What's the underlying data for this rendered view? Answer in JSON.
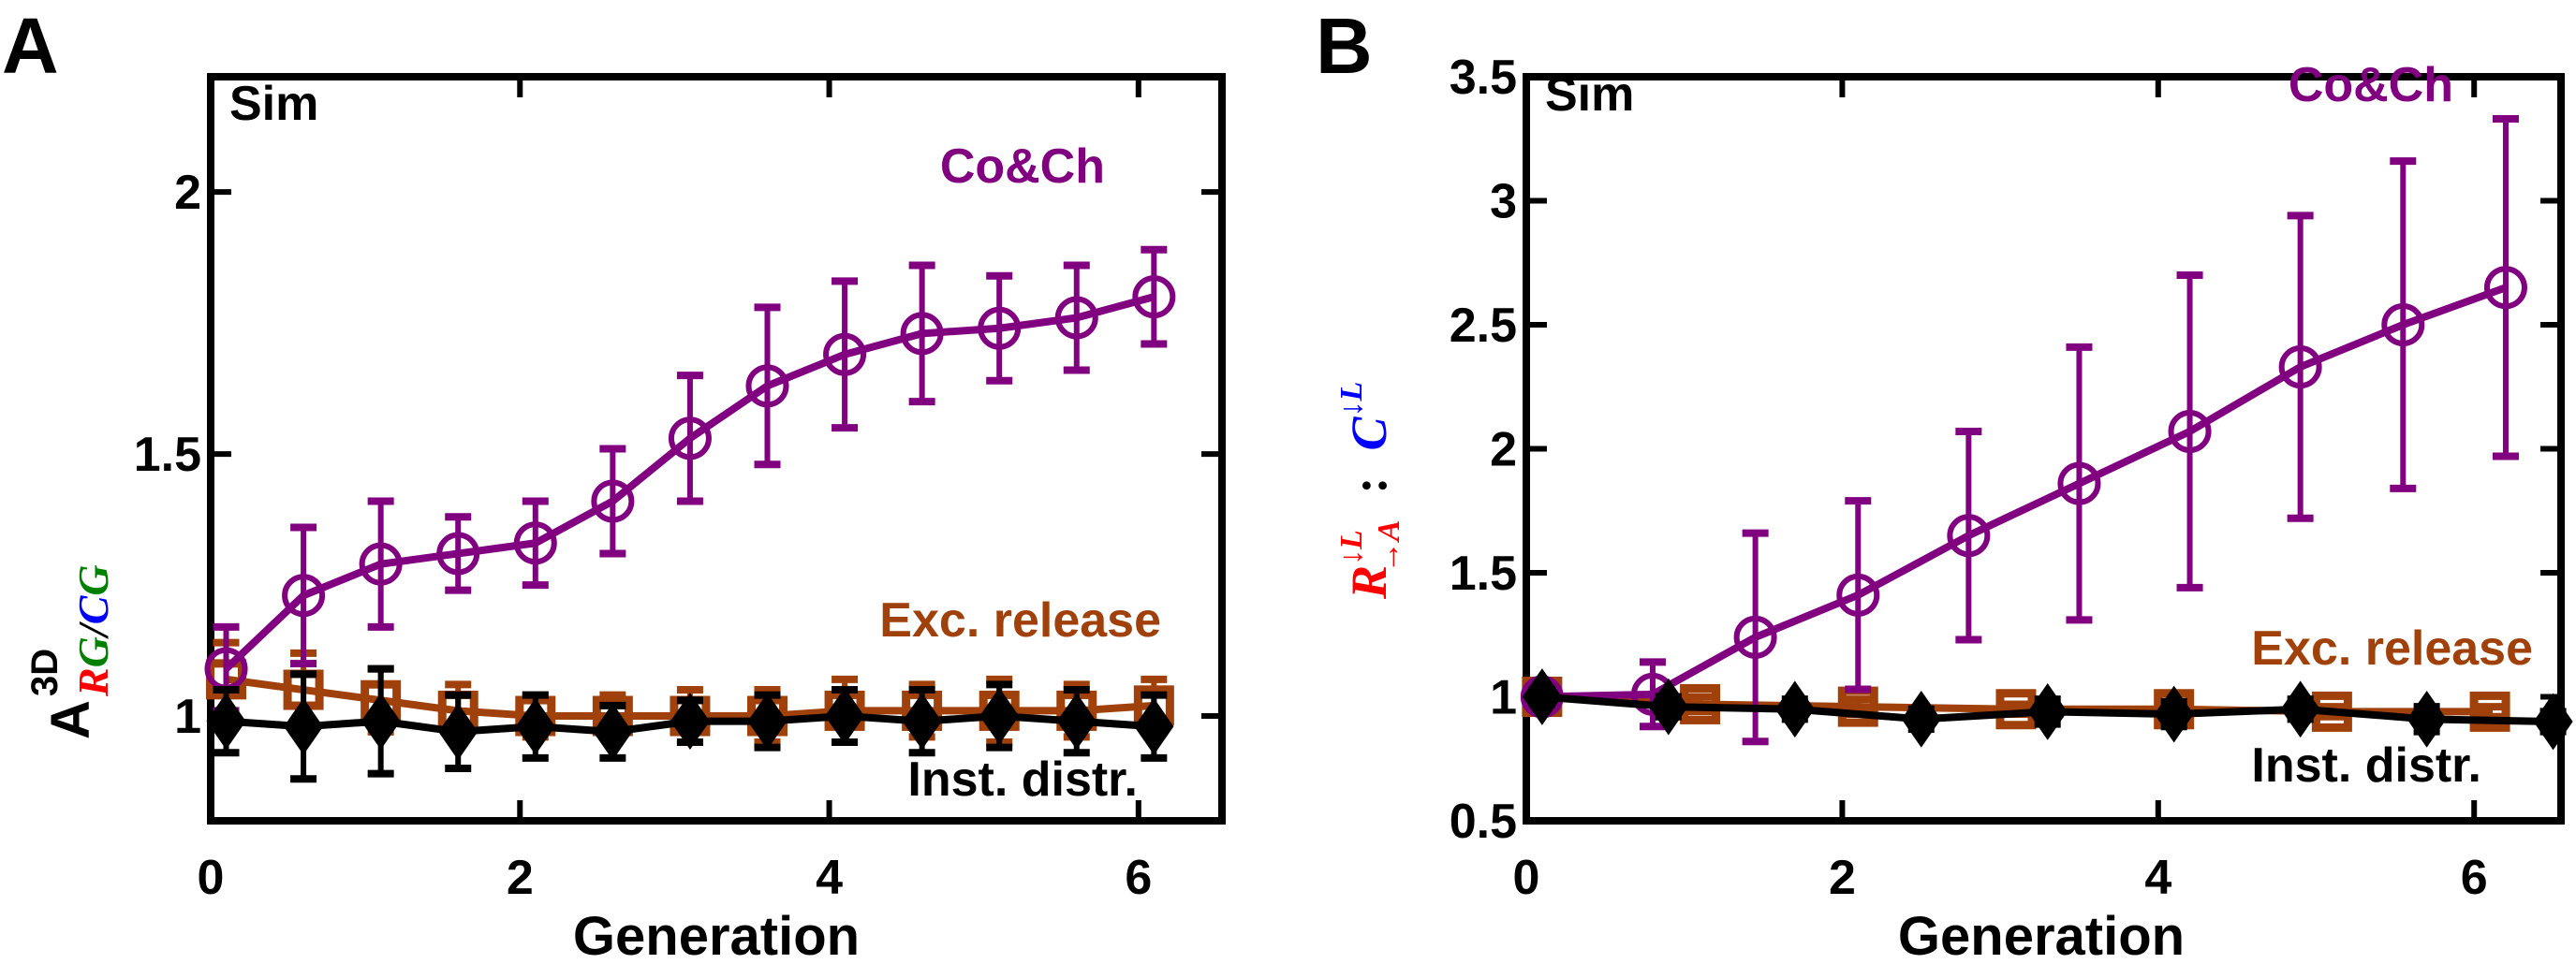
{
  "chart_data": [
    {
      "type": "line",
      "panel_label": "A",
      "title": "",
      "annotation": "Sim",
      "xlabel": "Generation",
      "ylabel": {
        "base": "A",
        "superscript": "3D",
        "subscript_parts": [
          {
            "text": "RG",
            "colors": [
              "#ff0000",
              "#008000"
            ]
          },
          {
            "text": "/",
            "color": "#000000"
          },
          {
            "text": "CG",
            "colors": [
              "#0000ff",
              "#008000"
            ]
          }
        ]
      },
      "xlim": [
        0,
        6.54
      ],
      "ylim": [
        0.8,
        2.22
      ],
      "xticks": [
        0,
        2,
        4,
        6
      ],
      "xtick_labels": [
        "0",
        "2",
        "4",
        "6"
      ],
      "yticks": [
        1,
        1.5,
        2
      ],
      "ytick_labels": [
        "1",
        "1.5",
        "2"
      ],
      "grid": false,
      "series": [
        {
          "name": "Co&Ch",
          "color": "#800080",
          "marker": "circle",
          "label_position": "upper-right",
          "x": [
            0.1,
            0.6,
            1.1,
            1.6,
            2.1,
            2.6,
            3.1,
            3.6,
            4.1,
            4.6,
            5.1,
            5.6,
            6.1
          ],
          "y": [
            1.09,
            1.23,
            1.29,
            1.31,
            1.33,
            1.41,
            1.53,
            1.63,
            1.69,
            1.73,
            1.74,
            1.76,
            1.8
          ],
          "err": [
            0.08,
            0.13,
            0.12,
            0.07,
            0.08,
            0.1,
            0.12,
            0.15,
            0.14,
            0.13,
            0.1,
            0.1,
            0.09
          ]
        },
        {
          "name": "Exc. release",
          "color": "#a0400a",
          "marker": "square",
          "label_position": "lower-right",
          "x": [
            0.1,
            0.6,
            1.1,
            1.6,
            2.1,
            2.6,
            3.1,
            3.6,
            4.1,
            4.6,
            5.1,
            5.6,
            6.1
          ],
          "y": [
            1.07,
            1.05,
            1.03,
            1.01,
            1.0,
            1.0,
            1.0,
            1.0,
            1.01,
            1.01,
            1.01,
            1.01,
            1.02
          ],
          "err": [
            0.07,
            0.07,
            0.06,
            0.05,
            0.04,
            0.04,
            0.05,
            0.05,
            0.06,
            0.05,
            0.06,
            0.05,
            0.05
          ]
        },
        {
          "name": "Inst. distr.",
          "color": "#000000",
          "marker": "diamond",
          "label_position": "bottom-right",
          "x": [
            0.1,
            0.6,
            1.1,
            1.6,
            2.1,
            2.6,
            3.1,
            3.6,
            4.1,
            4.6,
            5.1,
            5.6,
            6.1
          ],
          "y": [
            0.99,
            0.98,
            0.99,
            0.97,
            0.98,
            0.97,
            0.99,
            0.99,
            1.0,
            0.99,
            1.0,
            0.99,
            0.98
          ],
          "err": [
            0.06,
            0.1,
            0.1,
            0.07,
            0.06,
            0.05,
            0.04,
            0.05,
            0.05,
            0.06,
            0.06,
            0.06,
            0.06
          ]
        }
      ]
    },
    {
      "type": "line",
      "panel_label": "B",
      "title": "",
      "annotation": "Sim",
      "xlabel": "Generation",
      "ylabel": {
        "left_part": "R",
        "left_arrows": "←L, →A",
        "separator": ":",
        "right_part": "C",
        "right_arrow": "←L",
        "left_color": "#ff0000",
        "right_color": "#0000ff"
      },
      "xlim": [
        0,
        6.55
      ],
      "ylim": [
        0.5,
        3.5
      ],
      "xticks": [
        0,
        2,
        4,
        6
      ],
      "xtick_labels": [
        "0",
        "2",
        "4",
        "6"
      ],
      "yticks": [
        0.5,
        1,
        1.5,
        2,
        2.5,
        3,
        3.5
      ],
      "ytick_labels": [
        "0.5",
        "1",
        "1.5",
        "2",
        "2.5",
        "3",
        "3.5"
      ],
      "grid": false,
      "series": [
        {
          "name": "Co&Ch",
          "color": "#800080",
          "marker": "circle",
          "label_position": "top-right",
          "x": [
            0.1,
            0.8,
            1.45,
            2.1,
            2.8,
            3.5,
            4.2,
            4.9,
            5.55,
            6.2
          ],
          "y": [
            1.0,
            1.01,
            1.24,
            1.41,
            1.65,
            1.86,
            2.07,
            2.33,
            2.5,
            2.65
          ],
          "err": [
            0.01,
            0.13,
            0.42,
            0.38,
            0.42,
            0.55,
            0.63,
            0.61,
            0.66,
            0.68
          ]
        },
        {
          "name": "Exc. release",
          "color": "#a0400a",
          "marker": "square",
          "label_position": "lower-right",
          "x": [
            0.1,
            1.1,
            2.1,
            3.1,
            4.1,
            5.1,
            6.1
          ],
          "y": [
            1.0,
            0.97,
            0.96,
            0.95,
            0.95,
            0.94,
            0.94
          ],
          "err": [
            0.02,
            0.03,
            0.03,
            0.02,
            0.03,
            0.02,
            0.02
          ]
        },
        {
          "name": "Inst. distr.",
          "color": "#000000",
          "marker": "diamond",
          "label_position": "bottom-right",
          "x": [
            0.1,
            0.9,
            1.7,
            2.5,
            3.3,
            4.1,
            4.9,
            5.7,
            6.5
          ],
          "y": [
            1.0,
            0.96,
            0.95,
            0.91,
            0.94,
            0.93,
            0.95,
            0.91,
            0.9
          ],
          "err": [
            0.03,
            0.04,
            0.04,
            0.04,
            0.05,
            0.05,
            0.04,
            0.05,
            0.04
          ]
        }
      ]
    }
  ]
}
